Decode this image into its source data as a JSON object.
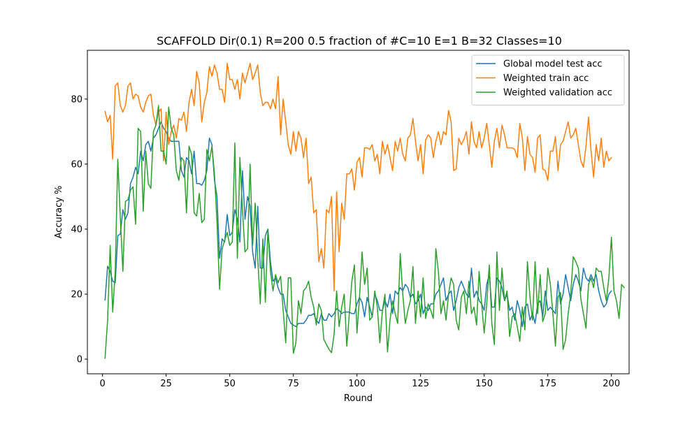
{
  "chart_data": {
    "type": "line",
    "title": "SCAFFOLD Dir(0.1) R=200 0.5 fraction of #C=10 E=1 B=32  Classes=10",
    "xlabel": "Round",
    "ylabel": "Accuracy %",
    "xlim": [
      -5.95,
      206.95
    ],
    "ylim": [
      -4.5,
      95
    ],
    "xticks": [
      0,
      25,
      50,
      75,
      100,
      125,
      150,
      175,
      200
    ],
    "yticks": [
      0,
      20,
      40,
      60,
      80
    ],
    "grid": false,
    "legend_position": "top-right",
    "x_start": 1,
    "x_end": 200,
    "series": [
      {
        "name": "Global model test acc",
        "color": "#1f77b4",
        "values": [
          18.2,
          28.6,
          27.0,
          24.0,
          23.5,
          38.0,
          38.5,
          46.0,
          43.0,
          45.0,
          54.0,
          56.0,
          59.0,
          57.0,
          64.0,
          61.0,
          66.0,
          67.0,
          64.0,
          68.0,
          69.0,
          71.0,
          73.0,
          71.0,
          70.0,
          68.0,
          67.0,
          67.0,
          67.0,
          67.0,
          58.0,
          56.0,
          62.0,
          61.0,
          57.0,
          64.0,
          54.0,
          54.0,
          53.5,
          55.0,
          58.0,
          68.0,
          66.0,
          55.0,
          50.0,
          31.0,
          37.0,
          36.0,
          44.5,
          38.0,
          39.0,
          46.0,
          43.0,
          36.0,
          58.0,
          43.0,
          50.0,
          47.0,
          33.0,
          28.0,
          47.0,
          28.0,
          28.0,
          38.0,
          40.0,
          30.0,
          24.0,
          25.0,
          22.0,
          20.0,
          20.0,
          15.0,
          13.0,
          11.0,
          10.5,
          10.0,
          11.0,
          11.0,
          11.0,
          12.0,
          13.5,
          13.5,
          14.0,
          12.0,
          11.0,
          14.0,
          12.0,
          12.0,
          14.0,
          13.0,
          14.0,
          15.5,
          15.0,
          14.0,
          14.5,
          14.5,
          14.5,
          14.0,
          14.0,
          17.0,
          19.0,
          17.5,
          13.0,
          19.0,
          16.0,
          13.0,
          20.0,
          18.0,
          15.0,
          15.0,
          18.0,
          16.0,
          20.0,
          14.0,
          21.0,
          20.0,
          22.0,
          21.0,
          23.0,
          22.0,
          19.0,
          20.0,
          17.0,
          18.0,
          20.0,
          14.0,
          16.0,
          15.0,
          17.0,
          17.0,
          20.0,
          21.0,
          23.0,
          25.0,
          18.0,
          20.0,
          21.0,
          15.0,
          18.0,
          22.0,
          24.0,
          22.0,
          20.0,
          19.0,
          28.0,
          19.0,
          21.0,
          18.0,
          17.0,
          15.0,
          23.0,
          26.0,
          16.0,
          16.0,
          25.0,
          24.0,
          22.0,
          18.0,
          20.0,
          15.0,
          16.0,
          12.0,
          18.0,
          15.0,
          10.0,
          16.0,
          17.0,
          12.0,
          14.0,
          11.0,
          17.0,
          18.0,
          13.0,
          21.0,
          15.0,
          16.0,
          15.0,
          14.0,
          24.0,
          17.0,
          20.0,
          26.0,
          22.0,
          18.0,
          23.0,
          26.0,
          24.0,
          21.0,
          28.0,
          25.0,
          24.0,
          26.0,
          24.0,
          26.0,
          21.0,
          18.0,
          16.0,
          17.0,
          20.0,
          21.0
        ]
      },
      {
        "name": "Weighted train acc",
        "color": "#ff7f0e",
        "values": [
          76.2,
          73.0,
          75.0,
          61.5,
          84.0,
          85.0,
          78.0,
          76.0,
          78.0,
          84.0,
          85.0,
          80.0,
          81.5,
          81.0,
          77.5,
          76.0,
          79.0,
          81.0,
          81.5,
          75.0,
          72.0,
          76.0,
          77.0,
          61.0,
          76.0,
          66.0,
          70.0,
          72.0,
          68.0,
          74.0,
          73.5,
          76.0,
          70.0,
          79.0,
          83.0,
          78.0,
          88.5,
          85.0,
          73.0,
          79.0,
          82.0,
          90.0,
          87.0,
          90.5,
          88.0,
          83.0,
          83.0,
          79.0,
          91.0,
          86.0,
          86.0,
          83.0,
          86.0,
          80.0,
          88.0,
          85.0,
          88.0,
          91.0,
          86.0,
          88.0,
          90.5,
          82.0,
          78.0,
          79.0,
          79.0,
          77.0,
          80.0,
          77.0,
          87.0,
          69.0,
          80.0,
          73.0,
          66.0,
          63.0,
          70.0,
          64.0,
          70.0,
          68.0,
          62.0,
          68.0,
          54.0,
          56.0,
          45.0,
          46.0,
          30.0,
          34.0,
          28.0,
          46.0,
          45.0,
          50.0,
          21.0,
          51.5,
          33.0,
          48.0,
          43.0,
          57.0,
          57.0,
          58.5,
          52.0,
          60.5,
          62.0,
          56.0,
          65.0,
          65.0,
          64.5,
          66.0,
          61.0,
          63.0,
          57.0,
          67.0,
          63.0,
          66.0,
          62.0,
          58.0,
          67.0,
          64.0,
          68.0,
          63.0,
          61.0,
          68.0,
          69.0,
          74.0,
          67.0,
          61.0,
          66.0,
          57.0,
          67.5,
          69.0,
          68.0,
          62.0,
          67.0,
          70.0,
          66.0,
          70.0,
          69.0,
          76.5,
          73.0,
          58.0,
          58.5,
          68.0,
          66.0,
          67.5,
          70.0,
          63.0,
          73.0,
          67.0,
          65.0,
          70.0,
          65.0,
          68.0,
          72.5,
          66.0,
          59.0,
          67.0,
          71.0,
          65.0,
          72.0,
          69.0,
          65.0,
          65.0,
          65.0,
          64.5,
          62.0,
          72.5,
          68.0,
          58.0,
          68.5,
          63.0,
          62.0,
          57.5,
          68.0,
          69.0,
          58.5,
          58.0,
          55.0,
          64.0,
          64.0,
          68.5,
          58.0,
          66.0,
          67.0,
          70.0,
          73.0,
          68.0,
          69.0,
          71.0,
          66.0,
          61.0,
          59.0,
          65.5,
          74.5,
          64.0,
          56.0,
          66.0,
          61.0,
          68.0,
          59.0,
          64.0,
          61.0,
          62.0
        ]
      },
      {
        "name": "Weighted validation acc",
        "color": "#2ca02c",
        "values": [
          0.3,
          12.0,
          35.0,
          14.5,
          27.0,
          61.5,
          43.5,
          27.0,
          48.5,
          49.0,
          52.0,
          53.0,
          41.5,
          71.0,
          70.0,
          45.5,
          64.0,
          54.0,
          52.5,
          70.0,
          72.0,
          78.0,
          64.0,
          64.0,
          60.0,
          77.5,
          71.0,
          69.0,
          58.0,
          55.0,
          62.0,
          61.0,
          45.0,
          65.5,
          63.0,
          45.0,
          44.0,
          51.0,
          42.0,
          43.0,
          64.5,
          61.0,
          65.5,
          57.0,
          42.0,
          21.5,
          34.0,
          36.5,
          39.0,
          35.0,
          36.0,
          66.5,
          31.0,
          62.0,
          46.0,
          33.0,
          34.0,
          60.0,
          35.0,
          48.0,
          31.0,
          17.0,
          37.0,
          17.5,
          40.0,
          27.0,
          21.0,
          26.0,
          23.5,
          25.5,
          15.0,
          5.0,
          25.0,
          25.0,
          1.8,
          5.0,
          18.0,
          14.0,
          21.0,
          22.0,
          24.0,
          19.0,
          16.0,
          10.5,
          17.0,
          15.0,
          6.0,
          4.5,
          3.0,
          2.0,
          7.5,
          21.0,
          10.0,
          16.0,
          20.0,
          4.0,
          14.0,
          24.0,
          29.0,
          8.0,
          19.0,
          33.0,
          23.0,
          28.0,
          12.0,
          13.0,
          21.0,
          16.0,
          5.0,
          15.0,
          20.0,
          2.2,
          12.0,
          18.0,
          14.0,
          11.0,
          32.5,
          20.0,
          11.0,
          15.0,
          18.0,
          28.5,
          11.0,
          21.0,
          13.0,
          25.0,
          12.5,
          17.0,
          15.0,
          12.5,
          34.0,
          27.0,
          14.0,
          18.0,
          12.0,
          20.0,
          25.0,
          23.0,
          12.0,
          9.0,
          19.0,
          21.0,
          14.0,
          24.0,
          14.0,
          16.0,
          10.5,
          27.0,
          17.0,
          8.0,
          17.0,
          29.0,
          11.0,
          4.5,
          33.0,
          15.0,
          28.0,
          18.0,
          21.0,
          7.0,
          13.0,
          14.0,
          10.0,
          5.5,
          16.0,
          9.0,
          30.0,
          19.0,
          12.0,
          30.0,
          14.0,
          26.0,
          11.5,
          14.0,
          28.0,
          23.0,
          14.0,
          4.0,
          19.0,
          20.5,
          3.0,
          6.0,
          14.0,
          20.0,
          31.5,
          30.0,
          28.0,
          18.5,
          14.0,
          9.5,
          23.0,
          25.0,
          22.0,
          28.0,
          27.0,
          27.0,
          22.0,
          18.0,
          25.0,
          37.5,
          21.0,
          18.0,
          12.5,
          23.0,
          22.0
        ]
      }
    ]
  }
}
